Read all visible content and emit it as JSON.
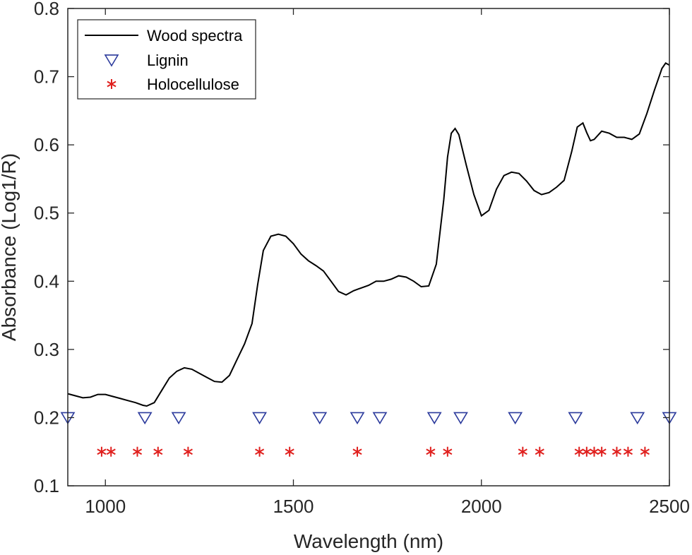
{
  "chart_data": {
    "type": "line",
    "title": "",
    "xlabel": "Wavelength (nm)",
    "ylabel": "Absorbance (Log1/R)",
    "xlim": [
      900,
      2500
    ],
    "ylim": [
      0.1,
      0.8
    ],
    "xticks": [
      1000,
      1500,
      2000,
      2500
    ],
    "yticks": [
      0.1,
      0.2,
      0.3,
      0.4,
      0.5,
      0.6,
      0.7,
      0.8
    ],
    "xtick_labels": [
      "1000",
      "1500",
      "2000",
      "2500"
    ],
    "ytick_labels": [
      "0.1",
      "0.2",
      "0.3",
      "0.4",
      "0.5",
      "0.6",
      "0.7",
      "0.8"
    ],
    "grid": false,
    "legend_position": "top-left",
    "series": [
      {
        "name": "Wood spectra",
        "style": "line",
        "color": "#000000",
        "x": [
          900,
          920,
          940,
          960,
          980,
          1000,
          1020,
          1040,
          1060,
          1080,
          1100,
          1110,
          1130,
          1150,
          1170,
          1190,
          1210,
          1230,
          1250,
          1270,
          1290,
          1310,
          1330,
          1350,
          1370,
          1390,
          1405,
          1420,
          1440,
          1460,
          1480,
          1500,
          1520,
          1540,
          1560,
          1580,
          1600,
          1620,
          1640,
          1660,
          1680,
          1700,
          1720,
          1740,
          1760,
          1780,
          1800,
          1820,
          1840,
          1860,
          1880,
          1900,
          1910,
          1920,
          1930,
          1940,
          1960,
          1980,
          2000,
          2020,
          2040,
          2060,
          2080,
          2100,
          2120,
          2140,
          2160,
          2180,
          2200,
          2220,
          2240,
          2255,
          2270,
          2280,
          2290,
          2300,
          2320,
          2340,
          2360,
          2380,
          2400,
          2420,
          2440,
          2460,
          2480,
          2490,
          2500
        ],
        "y": [
          0.235,
          0.232,
          0.229,
          0.23,
          0.234,
          0.234,
          0.231,
          0.228,
          0.225,
          0.222,
          0.218,
          0.217,
          0.222,
          0.24,
          0.258,
          0.268,
          0.273,
          0.271,
          0.265,
          0.259,
          0.253,
          0.252,
          0.262,
          0.285,
          0.308,
          0.338,
          0.395,
          0.445,
          0.466,
          0.469,
          0.466,
          0.455,
          0.44,
          0.43,
          0.423,
          0.415,
          0.4,
          0.385,
          0.38,
          0.386,
          0.39,
          0.394,
          0.4,
          0.4,
          0.403,
          0.408,
          0.406,
          0.4,
          0.392,
          0.393,
          0.425,
          0.52,
          0.582,
          0.617,
          0.624,
          0.615,
          0.57,
          0.527,
          0.496,
          0.504,
          0.535,
          0.555,
          0.56,
          0.558,
          0.547,
          0.533,
          0.527,
          0.53,
          0.538,
          0.548,
          0.59,
          0.626,
          0.632,
          0.618,
          0.606,
          0.608,
          0.62,
          0.617,
          0.611,
          0.611,
          0.608,
          0.616,
          0.646,
          0.68,
          0.712,
          0.72,
          0.717
        ]
      },
      {
        "name": "Lignin",
        "style": "marker",
        "marker": "triangle-down",
        "color": "#2b3a9c",
        "x": [
          900,
          1105,
          1195,
          1410,
          1570,
          1670,
          1730,
          1875,
          1945,
          2090,
          2250,
          2415,
          2500
        ],
        "y": [
          0.2,
          0.2,
          0.2,
          0.2,
          0.2,
          0.2,
          0.2,
          0.2,
          0.2,
          0.2,
          0.2,
          0.2,
          0.2
        ]
      },
      {
        "name": "Holocellulose",
        "style": "marker",
        "marker": "asterisk",
        "color": "#e0201e",
        "x": [
          990,
          1015,
          1085,
          1140,
          1220,
          1410,
          1490,
          1670,
          1865,
          1910,
          2110,
          2155,
          2260,
          2280,
          2300,
          2320,
          2360,
          2390,
          2435
        ],
        "y": [
          0.15,
          0.15,
          0.15,
          0.15,
          0.15,
          0.15,
          0.15,
          0.15,
          0.15,
          0.15,
          0.15,
          0.15,
          0.15,
          0.15,
          0.15,
          0.15,
          0.15,
          0.15,
          0.15
        ]
      }
    ]
  }
}
